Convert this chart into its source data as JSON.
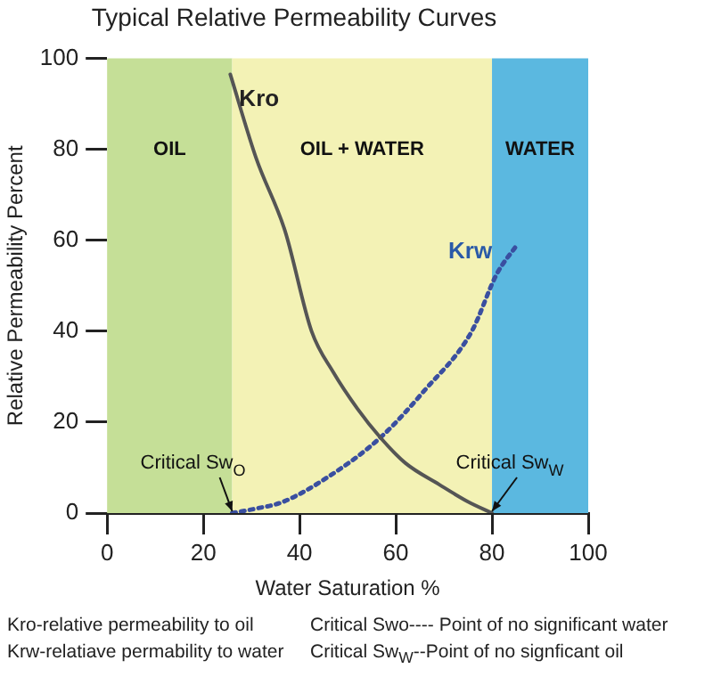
{
  "chart_data": {
    "type": "line",
    "title": "Typical Relative Permeability Curves",
    "xlabel": "Water Saturation %",
    "ylabel": "Relative Permeability Percent",
    "xlim": [
      0,
      100
    ],
    "xticks": [
      0,
      20,
      40,
      60,
      80,
      100
    ],
    "ylim": [
      0,
      100
    ],
    "yticks": [
      0,
      20,
      40,
      60,
      80,
      100
    ],
    "grid": false,
    "legend": false,
    "marker": "none",
    "series": [
      {
        "name": "Kro",
        "color": "#555555",
        "line_style": "solid",
        "x": [
          25.6,
          31,
          37,
          42.5,
          47,
          52,
          56.8,
          62,
          69,
          75,
          80
        ],
        "values": [
          96.5,
          78,
          62,
          40,
          31,
          23,
          16.6,
          11,
          6.3,
          2.5,
          0
        ]
      },
      {
        "name": "Krw",
        "color": "#3a4fa0",
        "line_style": "dotted",
        "x": [
          26,
          31,
          36.4,
          46,
          56.8,
          66,
          75.7,
          81,
          85.2
        ],
        "values": [
          0,
          1,
          2.4,
          8,
          16.6,
          27,
          39.8,
          52.6,
          59
        ]
      }
    ],
    "bands": [
      {
        "axis": "x",
        "from": 0,
        "to": 26,
        "label": "OIL",
        "color": "#c5df97"
      },
      {
        "axis": "x",
        "from": 26,
        "to": 80,
        "label": "OIL + WATER",
        "color": "#f3f2b5"
      },
      {
        "axis": "x",
        "from": 80,
        "to": 100,
        "label": "WATER",
        "color": "#5bb8e0"
      }
    ],
    "annotations": [
      {
        "text": "Critical Sw$_{O}$",
        "x": 26,
        "y": 0
      },
      {
        "text": "Critical Sw$_{W}$",
        "x": 80,
        "y": 0
      },
      "Kro-relative permeability to oil",
      "Critical Swo---- Point of no significant water",
      "Krw-relatiave permability to water",
      "Critical Sw$_{W}$--Point of no signficant oil"
    ]
  }
}
